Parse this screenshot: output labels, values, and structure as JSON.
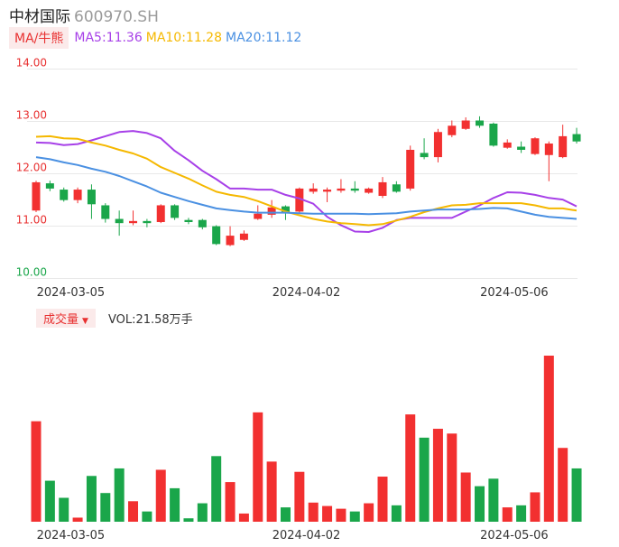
{
  "header": {
    "name": "中材国际",
    "code": "600970.SH"
  },
  "ma_legend": {
    "toggle_label": "MA/牛熊",
    "items": [
      {
        "label": "MA5:11.36",
        "color": "#a740e8"
      },
      {
        "label": "MA10:11.28",
        "color": "#f5b800"
      },
      {
        "label": "MA20:11.12",
        "color": "#4a90e2"
      }
    ]
  },
  "volume_legend": {
    "toggle_label": "成交量",
    "value_label": "VOL:21.58万手"
  },
  "colors": {
    "up": "#f23030",
    "down": "#1aa64a",
    "grid": "#e8e8e8",
    "axis_text": "#333333"
  },
  "chart_data": [
    {
      "type": "candlestick",
      "y_ticks": [
        {
          "label": "14.00",
          "value": 14.0,
          "color": "#e83030"
        },
        {
          "label": "13.00",
          "value": 13.0,
          "color": "#e83030"
        },
        {
          "label": "12.00",
          "value": 12.0,
          "color": "#e83030"
        },
        {
          "label": "11.00",
          "value": 11.0,
          "color": "#e83030"
        },
        {
          "label": "10.00",
          "value": 10.0,
          "color": "#1aa64a"
        }
      ],
      "ylim": [
        10.0,
        14.0
      ],
      "x_ticks": [
        {
          "label": "2024-03-05",
          "index": 2.5
        },
        {
          "label": "2024-04-02",
          "index": 19.5
        },
        {
          "label": "2024-05-06",
          "index": 34.5
        }
      ],
      "candles": [
        {
          "o": 11.28,
          "c": 11.82,
          "h": 11.85,
          "l": 11.25
        },
        {
          "o": 11.8,
          "c": 11.7,
          "h": 11.85,
          "l": 11.65
        },
        {
          "o": 11.68,
          "c": 11.48,
          "h": 11.72,
          "l": 11.45
        },
        {
          "o": 11.48,
          "c": 11.68,
          "h": 11.72,
          "l": 11.42
        },
        {
          "o": 11.68,
          "c": 11.4,
          "h": 11.78,
          "l": 11.12
        },
        {
          "o": 11.38,
          "c": 11.12,
          "h": 11.42,
          "l": 11.05
        },
        {
          "o": 11.12,
          "c": 11.04,
          "h": 11.28,
          "l": 10.8
        },
        {
          "o": 11.04,
          "c": 11.08,
          "h": 11.28,
          "l": 11.0
        },
        {
          "o": 11.08,
          "c": 11.04,
          "h": 11.12,
          "l": 10.96
        },
        {
          "o": 11.06,
          "c": 11.38,
          "h": 11.4,
          "l": 11.04
        },
        {
          "o": 11.38,
          "c": 11.14,
          "h": 11.4,
          "l": 11.1
        },
        {
          "o": 11.1,
          "c": 11.06,
          "h": 11.14,
          "l": 11.02
        },
        {
          "o": 11.1,
          "c": 10.96,
          "h": 11.12,
          "l": 10.92
        },
        {
          "o": 10.98,
          "c": 10.64,
          "h": 11.0,
          "l": 10.62
        },
        {
          "o": 10.62,
          "c": 10.8,
          "h": 10.98,
          "l": 10.6
        },
        {
          "o": 10.72,
          "c": 10.84,
          "h": 10.9,
          "l": 10.7
        },
        {
          "o": 11.12,
          "c": 11.22,
          "h": 11.38,
          "l": 11.1
        },
        {
          "o": 11.2,
          "c": 11.34,
          "h": 11.48,
          "l": 11.14
        },
        {
          "o": 11.36,
          "c": 11.24,
          "h": 11.38,
          "l": 11.1
        },
        {
          "o": 11.26,
          "c": 11.7,
          "h": 11.72,
          "l": 11.24
        },
        {
          "o": 11.64,
          "c": 11.7,
          "h": 11.8,
          "l": 11.6
        },
        {
          "o": 11.64,
          "c": 11.68,
          "h": 11.72,
          "l": 11.44
        },
        {
          "o": 11.66,
          "c": 11.7,
          "h": 11.88,
          "l": 11.62
        },
        {
          "o": 11.7,
          "c": 11.66,
          "h": 11.84,
          "l": 11.62
        },
        {
          "o": 11.62,
          "c": 11.7,
          "h": 11.72,
          "l": 11.6
        },
        {
          "o": 11.56,
          "c": 11.82,
          "h": 11.92,
          "l": 11.52
        },
        {
          "o": 11.78,
          "c": 11.64,
          "h": 11.84,
          "l": 11.62
        },
        {
          "o": 11.7,
          "c": 12.44,
          "h": 12.52,
          "l": 11.66
        },
        {
          "o": 12.38,
          "c": 12.3,
          "h": 12.66,
          "l": 12.26
        },
        {
          "o": 12.3,
          "c": 12.78,
          "h": 12.84,
          "l": 12.2
        },
        {
          "o": 12.72,
          "c": 12.9,
          "h": 13.0,
          "l": 12.68
        },
        {
          "o": 12.84,
          "c": 13.0,
          "h": 13.06,
          "l": 12.82
        },
        {
          "o": 13.0,
          "c": 12.9,
          "h": 13.08,
          "l": 12.86
        },
        {
          "o": 12.94,
          "c": 12.52,
          "h": 12.96,
          "l": 12.5
        },
        {
          "o": 12.48,
          "c": 12.58,
          "h": 12.64,
          "l": 12.46
        },
        {
          "o": 12.5,
          "c": 12.44,
          "h": 12.6,
          "l": 12.38
        },
        {
          "o": 12.36,
          "c": 12.66,
          "h": 12.68,
          "l": 12.34
        },
        {
          "o": 12.34,
          "c": 12.56,
          "h": 12.6,
          "l": 11.84
        },
        {
          "o": 12.3,
          "c": 12.7,
          "h": 12.92,
          "l": 12.28
        },
        {
          "o": 12.74,
          "c": 12.6,
          "h": 12.86,
          "l": 12.56
        }
      ],
      "series": [
        {
          "name": "MA5",
          "color": "#a740e8",
          "values": [
            12.58,
            12.57,
            12.53,
            12.55,
            12.62,
            12.7,
            12.78,
            12.8,
            12.76,
            12.66,
            12.42,
            12.24,
            12.04,
            11.88,
            11.7,
            11.7,
            11.68,
            11.68,
            11.58,
            11.51,
            11.41,
            11.16,
            11.0,
            10.88,
            10.87,
            10.95,
            11.1,
            11.14,
            11.14,
            11.14,
            11.14,
            11.26,
            11.38,
            11.52,
            11.63,
            11.62,
            11.58,
            11.52,
            11.49,
            11.36
          ]
        },
        {
          "name": "MA10",
          "color": "#f5b800",
          "values": [
            12.69,
            12.7,
            12.66,
            12.65,
            12.58,
            12.52,
            12.44,
            12.37,
            12.27,
            12.11,
            12.0,
            11.89,
            11.76,
            11.64,
            11.58,
            11.54,
            11.46,
            11.36,
            11.26,
            11.19,
            11.12,
            11.07,
            11.04,
            11.02,
            11.0,
            11.02,
            11.09,
            11.16,
            11.25,
            11.32,
            11.38,
            11.39,
            11.42,
            11.42,
            11.42,
            11.42,
            11.38,
            11.32,
            11.32,
            11.28
          ]
        },
        {
          "name": "MA20",
          "color": "#4a90e2",
          "values": [
            12.3,
            12.26,
            12.2,
            12.15,
            12.08,
            12.02,
            11.94,
            11.84,
            11.74,
            11.62,
            11.54,
            11.46,
            11.39,
            11.32,
            11.29,
            11.26,
            11.24,
            11.24,
            11.24,
            11.23,
            11.22,
            11.22,
            11.22,
            11.22,
            11.21,
            11.22,
            11.23,
            11.26,
            11.28,
            11.3,
            11.3,
            11.3,
            11.31,
            11.33,
            11.32,
            11.26,
            11.2,
            11.16,
            11.14,
            11.12
          ]
        }
      ]
    },
    {
      "type": "bar",
      "x_ticks": [
        {
          "label": "2024-03-05",
          "index": 2.5
        },
        {
          "label": "2024-04-02",
          "index": 19.5
        },
        {
          "label": "2024-05-06",
          "index": 34.5
        }
      ],
      "ymax": 24.3,
      "values": [
        14.7,
        6.0,
        3.5,
        0.6,
        6.7,
        4.2,
        7.8,
        3.0,
        1.5,
        7.6,
        4.9,
        0.5,
        2.7,
        9.6,
        5.8,
        1.2,
        16.0,
        8.8,
        2.1,
        7.3,
        2.8,
        2.3,
        1.9,
        1.5,
        2.7,
        6.6,
        2.4,
        15.7,
        12.3,
        13.6,
        12.9,
        7.2,
        5.2,
        6.3,
        2.1,
        2.4,
        4.3,
        24.3,
        10.8,
        7.8
      ]
    }
  ]
}
